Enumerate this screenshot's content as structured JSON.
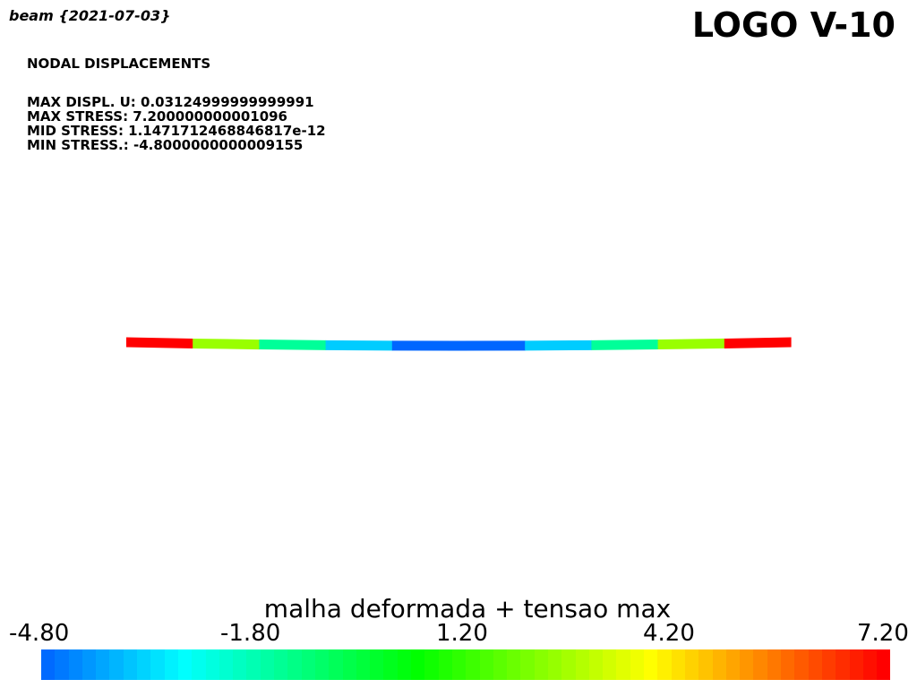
{
  "header": {
    "doc_title": "beam {2021-07-03}",
    "logo": "LOGO V-10"
  },
  "info": {
    "heading": "NODAL DISPLACEMENTS",
    "lines": [
      "MAX DISPL. U: 0.03124999999999991",
      "MAX STRESS: 7.200000000001096",
      "MID STRESS: 1.1471712468846817e-12",
      "MIN STRESS.: -4.8000000000009155"
    ]
  },
  "beam": {
    "segment_colors": [
      "#ff0000",
      "#99ff00",
      "#00ff99",
      "#00ccff",
      "#0066ff",
      "#0066ff",
      "#00ccff",
      "#00ff99",
      "#99ff00",
      "#ff0000"
    ]
  },
  "legend": {
    "title": "malha deformada + tensao max",
    "tick_labels": [
      "-4.80",
      "-1.80",
      "1.20",
      "4.20",
      "7.20"
    ],
    "range": [
      -4.8,
      7.2
    ],
    "colormap": "jet"
  }
}
